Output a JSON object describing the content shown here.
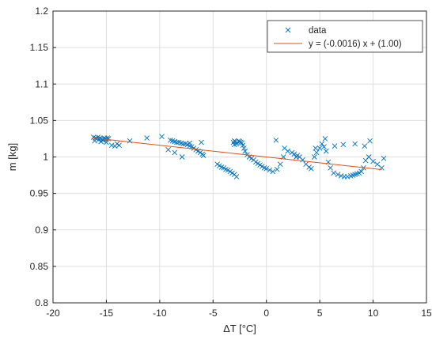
{
  "chart_data": {
    "type": "scatter",
    "xlabel": "ΔT [°C]",
    "ylabel": "m [kg]",
    "xlim": [
      -20,
      15
    ],
    "ylim": [
      0.8,
      1.2
    ],
    "xticks": [
      "-20",
      "-15",
      "-10",
      "-5",
      "0",
      "5",
      "10",
      "15"
    ],
    "yticks": [
      "0.8",
      "0.85",
      "0.9",
      "0.95",
      "1",
      "1.05",
      "1.1",
      "1.15",
      "1.2"
    ],
    "grid": true,
    "legend": "top-right",
    "colors": {
      "data": "#0072BD",
      "fit": "#D95319"
    },
    "series": [
      {
        "name": "data",
        "kind": "scatter",
        "x": [
          -16.2,
          -16.0,
          -15.9,
          -15.8,
          -15.7,
          -15.6,
          -15.5,
          -15.4,
          -15.3,
          -15.2,
          -15.1,
          -15.0,
          -14.9,
          -14.8,
          -16.1,
          -15.5,
          -15.0,
          -14.5,
          -14.2,
          -14.0,
          -13.8,
          -12.8,
          -11.2,
          -9.8,
          -9.0,
          -8.8,
          -8.6,
          -8.4,
          -8.2,
          -8.0,
          -7.8,
          -7.6,
          -7.4,
          -7.2,
          -7.0,
          -6.8,
          -6.6,
          -6.4,
          -6.2,
          -6.0,
          -5.9,
          -9.2,
          -8.6,
          -7.9,
          -7.2,
          -6.1,
          -4.6,
          -4.4,
          -4.2,
          -4.0,
          -3.8,
          -3.6,
          -3.4,
          -3.2,
          -3.0,
          -2.8,
          -3.1,
          -3.0,
          -2.9,
          -2.8,
          -3.0,
          -2.6,
          -2.5,
          -2.4,
          -2.3,
          -2.2,
          -2.1,
          -2.0,
          -1.8,
          -1.6,
          -1.4,
          -1.2,
          -1.0,
          -0.8,
          -0.6,
          -0.4,
          -0.2,
          0.0,
          0.3,
          0.6,
          1.0,
          1.3,
          1.6,
          2.0,
          2.4,
          2.6,
          2.9,
          3.1,
          3.4,
          3.7,
          4.0,
          4.2,
          4.5,
          4.7,
          5.0,
          5.2,
          5.4,
          5.6,
          5.8,
          6.0,
          6.3,
          6.7,
          7.0,
          7.3,
          7.6,
          7.9,
          8.1,
          8.3,
          8.5,
          8.7,
          8.9,
          9.1,
          9.3,
          9.6,
          10.0,
          10.4,
          10.8,
          11.0,
          0.9,
          1.7,
          2.8,
          4.6,
          5.5,
          6.4,
          7.2,
          8.3,
          9.2,
          9.7
        ],
        "y": [
          1.027,
          1.026,
          1.025,
          1.027,
          1.024,
          1.026,
          1.025,
          1.024,
          1.023,
          1.026,
          1.025,
          1.024,
          1.026,
          1.025,
          1.022,
          1.021,
          1.02,
          1.016,
          1.015,
          1.018,
          1.016,
          1.022,
          1.026,
          1.028,
          1.023,
          1.022,
          1.021,
          1.02,
          1.02,
          1.019,
          1.018,
          1.018,
          1.017,
          1.015,
          1.014,
          1.012,
          1.01,
          1.008,
          1.006,
          1.004,
          1.002,
          1.01,
          1.006,
          1.0,
          1.019,
          1.02,
          0.99,
          0.988,
          0.986,
          0.985,
          0.983,
          0.982,
          0.98,
          0.978,
          0.976,
          0.973,
          1.02,
          1.022,
          1.021,
          1.018,
          1.017,
          1.022,
          1.021,
          1.02,
          1.019,
          1.016,
          1.012,
          1.008,
          1.003,
          1.0,
          0.998,
          0.996,
          0.993,
          0.991,
          0.989,
          0.987,
          0.985,
          0.984,
          0.982,
          0.98,
          0.983,
          0.99,
          1.0,
          1.008,
          1.006,
          1.004,
          1.002,
          1.0,
          0.996,
          0.99,
          0.986,
          0.984,
          1.0,
          1.006,
          1.012,
          1.018,
          1.014,
          1.008,
          0.993,
          0.985,
          0.978,
          0.976,
          0.974,
          0.973,
          0.973,
          0.974,
          0.975,
          0.976,
          0.977,
          0.978,
          0.98,
          0.985,
          0.995,
          1.0,
          0.994,
          0.99,
          0.985,
          0.998,
          1.023,
          1.012,
          1.0,
          1.012,
          1.025,
          1.015,
          1.017,
          1.018,
          1.015,
          1.022
        ]
      },
      {
        "name": "y = (-0.0016) x + (1.00)",
        "kind": "line",
        "slope": -0.0016,
        "intercept": 1.0,
        "xrange": [
          -16.3,
          10.8
        ]
      }
    ]
  }
}
